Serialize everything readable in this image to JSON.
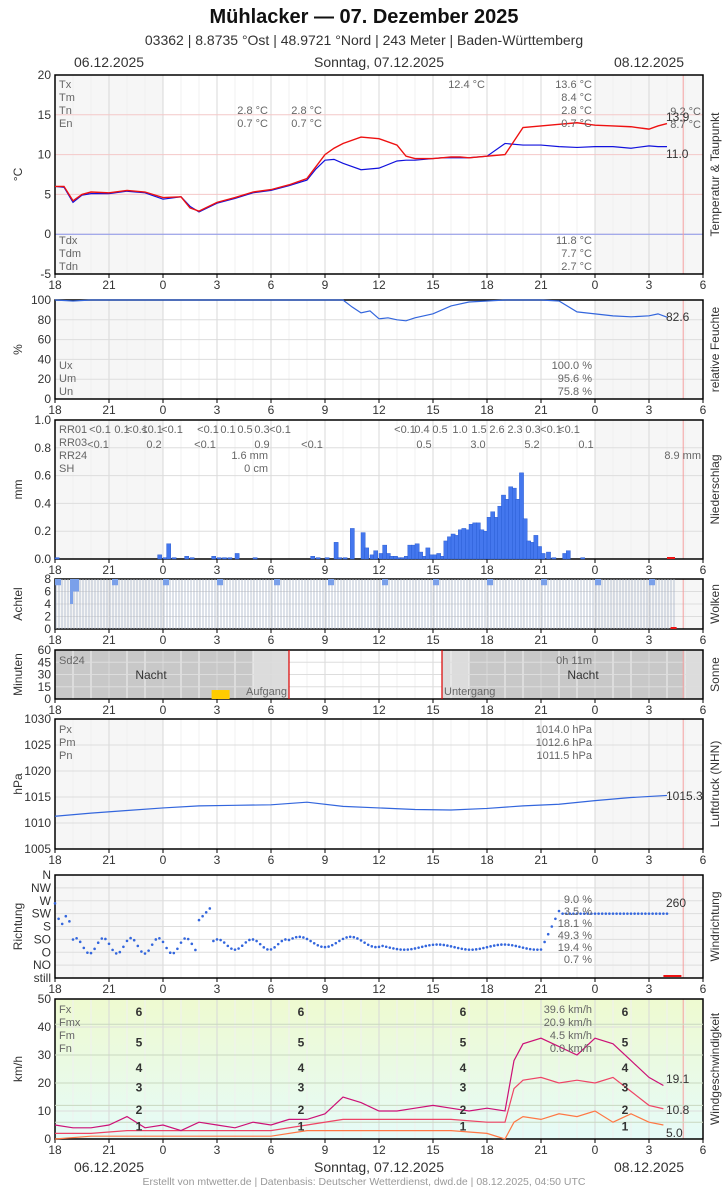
{
  "header": {
    "title": "Mühlacker  —  07. Dezember 2025",
    "subtitle": "03362  |  8.8735 °Ost  |  48.9721 °Nord  |  243 Meter  |  Baden-Württemberg",
    "date_left": "06.12.2025",
    "date_center": "Sonntag, 07.12.2025",
    "date_right": "08.12.2025"
  },
  "footer": "Erstellt von mtwetter.de | Datenbasis: Deutscher Wetterdienst, dwd.de | 08.12.2025, 04:50 UTC",
  "x_ticks": [
    "18",
    "21",
    "0",
    "3",
    "6",
    "9",
    "12",
    "15",
    "18",
    "21",
    "0",
    "3",
    "6"
  ],
  "chart_data": [
    {
      "id": "temperature",
      "type": "line",
      "title": "Temperatur & Taupunkt",
      "ylabel": "°C",
      "ylim": [
        -5,
        20
      ],
      "yticks": [
        20,
        15,
        10,
        5,
        0,
        -5
      ],
      "legend": [
        "Tx",
        "Tm",
        "Tn",
        "En",
        "Tdx",
        "Tdm",
        "Tdn"
      ],
      "annotations": {
        "day1_Tn": "2.8 °C",
        "day1_En": "0.7 °C",
        "day2_Tn": "2.8 °C",
        "day2_En": "0.7 °C",
        "day2_Tx": "12.4 °C",
        "day3_Tx": "13.6 °C",
        "day3_Tm": "8.4 °C",
        "day3_Tn": "2.8 °C",
        "day3_En": "0.7 °C",
        "day3_Tdx": "11.8 °C",
        "day3_Tdm": "7.7 °C",
        "day3_Tdn": "2.7 °C",
        "right_a": "9.2 °C",
        "right_b": "8.7 °C"
      },
      "last_values": {
        "temperature": "13.9",
        "dewpoint": "11.0"
      },
      "series": [
        {
          "name": "Temperatur",
          "color": "#ee1111",
          "x": [
            0,
            0.5,
            1,
            1.5,
            2,
            3,
            4,
            5,
            6,
            7,
            7.5,
            8,
            9,
            10,
            11,
            12,
            13,
            14,
            14.5,
            15,
            15.5,
            16,
            17,
            18,
            19,
            19.5,
            20,
            21,
            21.5,
            22,
            22.5,
            23,
            24,
            25,
            26,
            27,
            28,
            29,
            30,
            31,
            32,
            33,
            33.5,
            34
          ],
          "y": [
            6,
            6,
            4.2,
            5,
            5.3,
            5.2,
            5.5,
            5.3,
            4.6,
            4.7,
            3.3,
            2.9,
            4,
            4.6,
            5.3,
            5.6,
            6.2,
            7,
            8.5,
            10,
            10.8,
            11.4,
            12.2,
            12,
            11.2,
            9.8,
            9.5,
            9.5,
            9.6,
            9.7,
            9.7,
            9.6,
            9.8,
            10,
            13.4,
            13.6,
            13.8,
            14,
            13.7,
            13.6,
            13.5,
            13.2,
            13.6,
            13.9
          ]
        },
        {
          "name": "Taupunkt",
          "color": "#1111dd",
          "x": [
            0,
            0.5,
            1,
            1.5,
            2,
            3,
            4,
            5,
            6,
            7,
            7.5,
            8,
            9,
            10,
            11,
            12,
            13,
            14,
            14.5,
            15,
            15.5,
            16,
            17,
            18,
            19,
            19.5,
            20,
            21,
            21.5,
            22,
            22.5,
            23,
            24,
            25,
            26,
            27,
            28,
            29,
            30,
            31,
            32,
            33,
            33.5,
            34
          ],
          "y": [
            6,
            5.9,
            4,
            4.9,
            5.1,
            5.1,
            5.4,
            5.2,
            4.4,
            4.7,
            3.5,
            2.8,
            3.9,
            4.5,
            5.2,
            5.5,
            6.1,
            6.8,
            8.2,
            9.3,
            9.4,
            8.9,
            8.1,
            8.3,
            9.2,
            9.3,
            9.3,
            9.5,
            9.6,
            9.6,
            9.6,
            9.6,
            9.8,
            11.4,
            11.2,
            11.2,
            11,
            10.9,
            11,
            11,
            10.8,
            11.1,
            11,
            11
          ]
        }
      ]
    },
    {
      "id": "humidity",
      "type": "line",
      "title": "relative Feuchte",
      "ylabel": "%",
      "ylim": [
        0,
        100
      ],
      "yticks": [
        100,
        80,
        60,
        40,
        20,
        0
      ],
      "legend": [
        "Ux",
        "Um",
        "Un"
      ],
      "annotations": {
        "Ux": "100.0 %",
        "Um": "95.6 %",
        "Un": "75.8 %"
      },
      "last_value": "82.6",
      "series": [
        {
          "name": "rel. Feuchte",
          "color": "#3366dd",
          "x": [
            0,
            1,
            2,
            3,
            4,
            6,
            8,
            10,
            12,
            14,
            15,
            16,
            16.5,
            17,
            17.5,
            18,
            18.5,
            19,
            19.5,
            20,
            21,
            22,
            23,
            24,
            25,
            26,
            27,
            28,
            29,
            30,
            31,
            32,
            33,
            33.5,
            34
          ],
          "y": [
            100,
            99,
            100,
            100,
            100,
            100,
            100,
            100,
            100,
            100,
            100,
            100,
            93,
            87,
            89,
            81,
            82,
            80,
            79,
            82,
            86,
            94,
            98,
            99,
            100,
            100,
            100,
            99,
            88,
            86,
            84,
            83,
            84,
            86,
            82.6
          ]
        }
      ]
    },
    {
      "id": "precipitation",
      "type": "bar",
      "title": "Niederschlag",
      "ylabel": "mm",
      "ylim": [
        0,
        1.0
      ],
      "yticks": [
        "1.0",
        "0.8",
        "0.6",
        "0.4",
        "0.2",
        "0.0"
      ],
      "legend": [
        "RR01",
        "RR03",
        "RR24",
        "SH"
      ],
      "rr01_day1": [
        "<0.1",
        "0.1",
        "<0.1",
        "<0.1",
        "<0.1",
        "<0.1",
        "0.1",
        "0.5",
        "0.3",
        "<0.1"
      ],
      "rr03_day1": [
        "<0.1",
        "0.2",
        "<0.1",
        "0.9",
        "<0.1"
      ],
      "rr24_day1": "1.6 mm",
      "sh_day1": "0 cm",
      "rr01_day2": [
        "<0.1",
        "0.4",
        "0.5",
        "1.0",
        "1.5",
        "2.6",
        "2.3",
        "0.3",
        "<0.1",
        "<0.1"
      ],
      "rr03_day2": [
        "0.5",
        "3.0",
        "5.2",
        "0.1"
      ],
      "rr24_day2": "8.9 mm",
      "bars_x_hours": [
        0,
        5.7,
        6,
        6.2,
        6.5,
        7.2,
        7.5,
        8.7,
        9,
        9.3,
        9.6,
        10,
        11,
        14.2,
        14.5,
        15,
        15.5,
        15.7,
        16,
        16.4,
        17,
        17.2,
        17.5,
        17.7,
        18,
        18.2,
        18.4,
        18.6,
        18.8,
        19,
        19.2,
        19.4,
        19.6,
        19.8,
        20,
        20.2,
        20.4,
        20.6,
        20.8,
        21,
        21.2,
        21.4,
        21.6,
        21.8,
        22,
        22.2,
        22.4,
        22.6,
        22.8,
        23,
        23.2,
        23.4,
        23.6,
        23.8,
        24,
        24.2,
        24.4,
        24.6,
        24.8,
        25,
        25.2,
        25.4,
        25.6,
        25.8,
        26,
        26.2,
        26.4,
        26.6,
        26.8,
        27,
        27.3,
        27.6,
        28.2,
        28.4,
        29.2
      ],
      "bars_mm": [
        0.01,
        0.03,
        0.01,
        0.11,
        0.01,
        0.02,
        0.01,
        0.02,
        0.01,
        0.01,
        0.01,
        0.04,
        0.01,
        0.02,
        0.01,
        0.01,
        0.12,
        0.01,
        0.01,
        0.22,
        0.19,
        0.08,
        0.03,
        0.06,
        0.04,
        0.1,
        0.04,
        0.02,
        0.02,
        0.01,
        0.01,
        0.02,
        0.1,
        0.1,
        0.11,
        0.05,
        0.02,
        0.08,
        0.03,
        0.03,
        0.04,
        0.02,
        0.13,
        0.16,
        0.18,
        0.17,
        0.21,
        0.22,
        0.21,
        0.25,
        0.26,
        0.26,
        0.21,
        0.2,
        0.3,
        0.34,
        0.3,
        0.38,
        0.46,
        0.43,
        0.52,
        0.51,
        0.43,
        0.62,
        0.29,
        0.13,
        0.12,
        0.17,
        0.09,
        0.04,
        0.05,
        0.01,
        0.04,
        0.06,
        0.01
      ],
      "bar_color": "#4477ee"
    },
    {
      "id": "clouds",
      "type": "bar",
      "title": "Wolken",
      "ylabel": "Achtel",
      "ylim": [
        0,
        8
      ],
      "yticks": [
        "8",
        "6",
        "4",
        "2",
        "0"
      ],
      "note": "nearly all hours 8/8 overcast with occasional 7/8 and brief dip to 4/8 near 18:30"
    },
    {
      "id": "sunshine",
      "type": "bar",
      "title": "Sonne",
      "ylabel": "Minuten",
      "ylim": [
        0,
        60
      ],
      "yticks": [
        "60",
        "45",
        "30",
        "15",
        "0"
      ],
      "legend": [
        "Sd24"
      ],
      "night_label": "Nacht",
      "sunrise_label": "Aufgang",
      "sunset_label": "Untergang",
      "sunshine_total": "0h 11m",
      "sunshine_bar": {
        "start_hour": 8.7,
        "end_hour": 9.7,
        "minutes": 11,
        "color": "#ffcc00"
      },
      "sunrise_hour": 13.0,
      "sunset_hour": 21.5
    },
    {
      "id": "pressure",
      "type": "line",
      "title": "Luftdruck (NHN)",
      "ylabel": "hPa",
      "ylim": [
        1005,
        1030
      ],
      "yticks": [
        "1030",
        "1025",
        "1020",
        "1015",
        "1010",
        "1005"
      ],
      "legend": [
        "Px",
        "Pm",
        "Pn"
      ],
      "annotations": {
        "Px": "1014.0 hPa",
        "Pm": "1012.6 hPa",
        "Pn": "1011.5 hPa"
      },
      "last_value": "1015.3",
      "series": [
        {
          "name": "Luftdruck",
          "color": "#3366dd",
          "x": [
            0,
            2,
            4,
            6,
            8,
            10,
            12,
            14,
            16,
            18,
            20,
            22,
            24,
            26,
            28,
            30,
            32,
            34
          ],
          "y": [
            1011.3,
            1011.9,
            1012.4,
            1012.9,
            1013.3,
            1013.4,
            1013.5,
            1014,
            1013.2,
            1012.9,
            1012.6,
            1012.5,
            1012.8,
            1013.3,
            1013.6,
            1014.3,
            1014.9,
            1015.3
          ]
        }
      ]
    },
    {
      "id": "wind_direction",
      "type": "scatter",
      "title": "Windrichtung",
      "ylabel": "Richtung",
      "yticks": [
        "N",
        "NW",
        "W",
        "SW",
        "S",
        "SO",
        "O",
        "NO",
        "still"
      ],
      "annotations": [
        "9.0 %",
        "3.5 %",
        "18.1 %",
        "49.3 %",
        "19.4 %",
        "0.7 %"
      ],
      "last_value": "260",
      "color": "#3366dd"
    },
    {
      "id": "wind_speed",
      "type": "line",
      "title": "Windgeschwindigkeit",
      "ylabel": "km/h",
      "ylim": [
        0,
        50
      ],
      "yticks": [
        "50",
        "40",
        "30",
        "20",
        "10",
        "0"
      ],
      "legend": [
        "Fx",
        "Fmx",
        "Fm",
        "Fn"
      ],
      "annotations": {
        "Fx": "39.6 km/h",
        "Fmx": "20.9 km/h",
        "Fm": "4.5 km/h",
        "Fn": "0.0 km/h"
      },
      "beaufort_labels": [
        "6",
        "5",
        "4",
        "3",
        "2",
        "1"
      ],
      "last_values": {
        "gust": "19.1",
        "mean": "10.8",
        "min": "5.0"
      },
      "series": [
        {
          "name": "Fx",
          "color": "#cc1177",
          "x": [
            0,
            1,
            2,
            3,
            4,
            5,
            6,
            7,
            8,
            9,
            10,
            11,
            12,
            13,
            14,
            15,
            16,
            17,
            18,
            19,
            20,
            21,
            22,
            23,
            24,
            25,
            25.5,
            26,
            27,
            28,
            29,
            30,
            31,
            32,
            33,
            33.8
          ],
          "y": [
            5,
            4,
            4,
            5,
            8,
            4,
            5,
            3,
            6,
            5,
            4,
            6,
            5,
            7,
            7,
            9,
            15,
            13,
            10,
            10,
            11,
            12,
            11,
            10,
            11,
            10,
            28,
            34,
            36,
            33,
            30,
            36,
            34,
            28,
            22,
            19.1
          ]
        },
        {
          "name": "Fm",
          "color": "#ee4466",
          "x": [
            0,
            2,
            4,
            6,
            8,
            10,
            12,
            14,
            16,
            18,
            20,
            22,
            24,
            25,
            25.5,
            26,
            27,
            28,
            29,
            30,
            31,
            32,
            33,
            33.8
          ],
          "y": [
            2,
            2,
            3,
            3,
            3,
            3,
            3,
            5,
            7,
            7,
            7,
            7,
            6,
            6,
            18,
            21,
            22,
            20,
            21,
            20,
            22,
            17,
            12,
            10.8
          ]
        },
        {
          "name": "Fn",
          "color": "#ff7744",
          "x": [
            0,
            2,
            4,
            6,
            8,
            10,
            12,
            14,
            16,
            18,
            20,
            22,
            24,
            25,
            25.5,
            26,
            27,
            28,
            29,
            30,
            31,
            32,
            33,
            33.8
          ],
          "y": [
            0,
            1,
            1,
            1,
            1,
            1,
            1,
            3,
            3,
            3,
            3,
            3,
            2,
            0,
            6,
            8,
            7,
            9,
            8,
            10,
            6,
            9,
            6,
            5.0
          ]
        }
      ]
    }
  ]
}
